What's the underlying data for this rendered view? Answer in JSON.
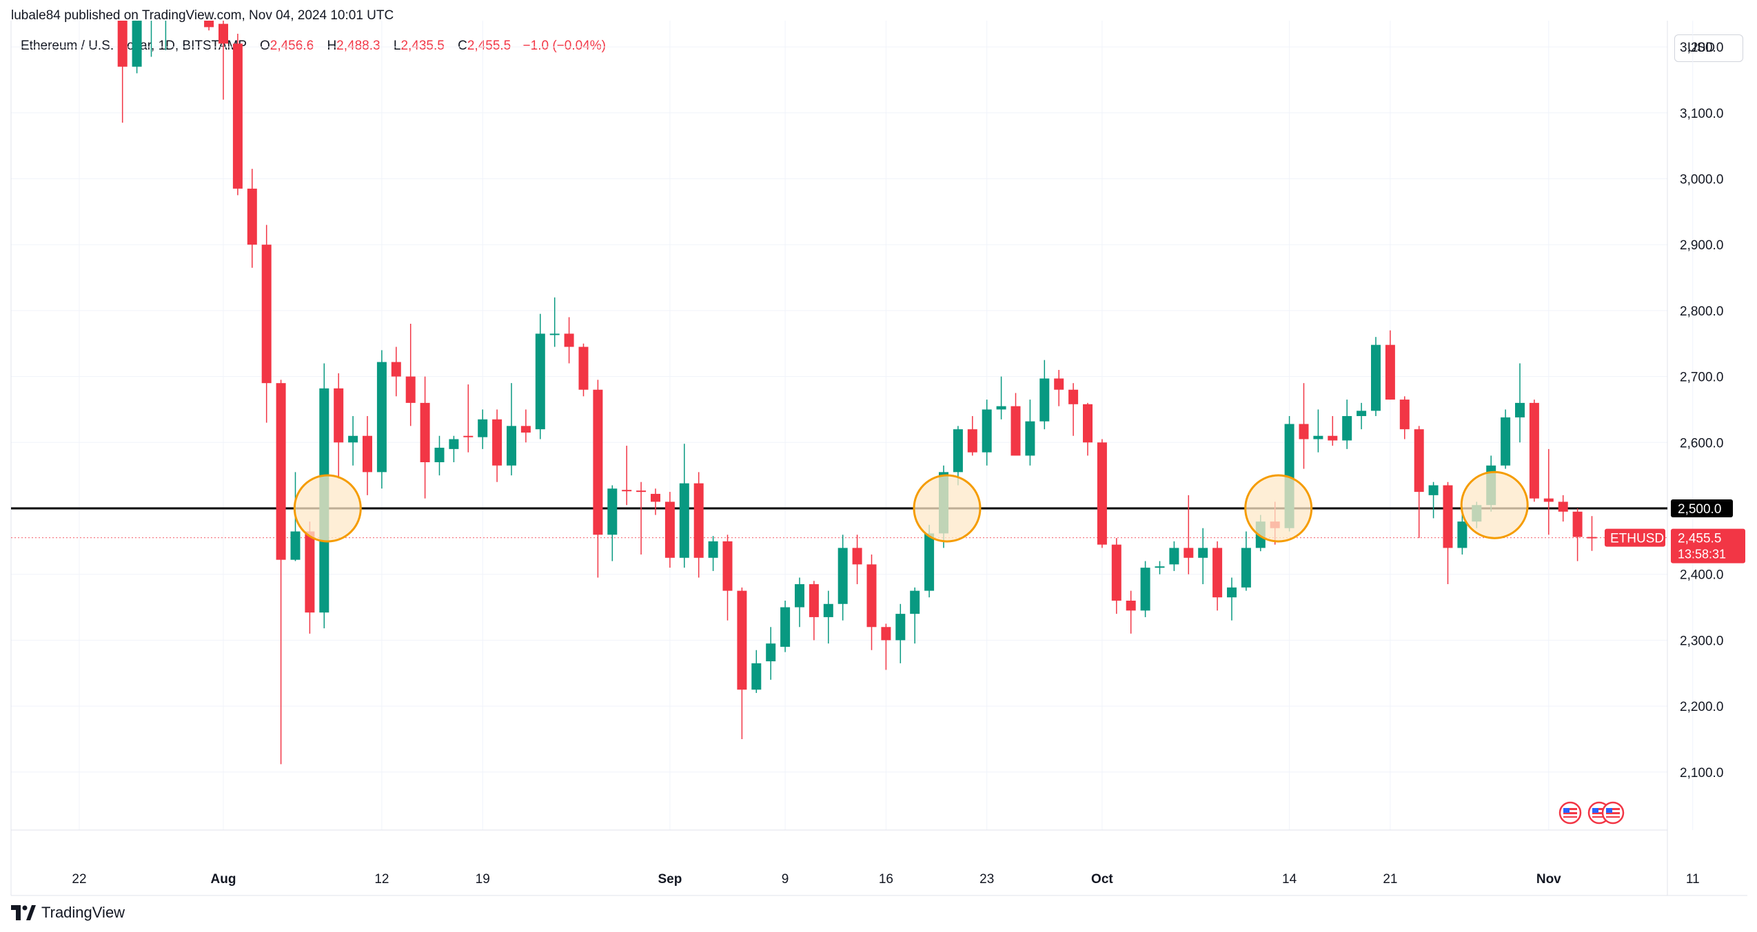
{
  "publisher": "lubale84 published on TradingView.com, Nov 04, 2024 10:01 UTC",
  "legend": {
    "symbol": "Ethereum / U.S. Dollar, 1D, BITSTAMP",
    "open_label": "O",
    "open": "2,456.6",
    "high_label": "H",
    "high": "2,488.3",
    "low_label": "L",
    "low": "2,435.5",
    "close_label": "C",
    "close": "2,455.5",
    "change": "−1.0 (−0.04%)"
  },
  "currency_button": "USD",
  "brand": "TradingView",
  "colors": {
    "up": "#089981",
    "down": "#f23645",
    "highlight_fill": "#fde8c8",
    "highlight_stroke": "#f59c00",
    "level_line": "#000000"
  },
  "chart_data": {
    "type": "candlestick",
    "symbol": "ETHUSD",
    "interval": "1D",
    "ylim": [
      2080,
      3280
    ],
    "y_ticks": [
      "3,200.0",
      "3,100.0",
      "3,000.0",
      "2,900.0",
      "2,800.0",
      "2,700.0",
      "2,600.0",
      "2,500.0",
      "2,400.0",
      "2,300.0",
      "2,200.0",
      "2,100.0"
    ],
    "y_tick_values": [
      3200,
      3100,
      3000,
      2900,
      2800,
      2700,
      2600,
      2500,
      2400,
      2300,
      2200,
      2100
    ],
    "x_ticks": [
      {
        "label": "22",
        "day": -10,
        "bold": false
      },
      {
        "label": "Aug",
        "day": 0,
        "bold": true
      },
      {
        "label": "12",
        "day": 11,
        "bold": false
      },
      {
        "label": "19",
        "day": 18,
        "bold": false
      },
      {
        "label": "Sep",
        "day": 31,
        "bold": true
      },
      {
        "label": "9",
        "day": 39,
        "bold": false
      },
      {
        "label": "16",
        "day": 46,
        "bold": false
      },
      {
        "label": "23",
        "day": 53,
        "bold": false
      },
      {
        "label": "Oct",
        "day": 61,
        "bold": true
      },
      {
        "label": "14",
        "day": 74,
        "bold": false
      },
      {
        "label": "21",
        "day": 81,
        "bold": false
      },
      {
        "label": "Nov",
        "day": 92,
        "bold": true
      },
      {
        "label": "11",
        "day": 102,
        "bold": false
      }
    ],
    "candles": [
      {
        "d": -7,
        "o": 3265,
        "h": 3300,
        "l": 3085,
        "c": 3170
      },
      {
        "d": -6,
        "o": 3170,
        "h": 3290,
        "l": 3160,
        "c": 3265
      },
      {
        "d": -5,
        "o": 3255,
        "h": 3300,
        "l": 3185,
        "c": 3255
      },
      {
        "d": -4,
        "o": 3240,
        "h": 3275,
        "l": 3195,
        "c": 3275
      },
      {
        "d": -3,
        "o": 3280,
        "h": 3300,
        "l": 3240,
        "c": 3300
      },
      {
        "d": -2,
        "o": 3290,
        "h": 3300,
        "l": 3250,
        "c": 3280
      },
      {
        "d": -1,
        "o": 3265,
        "h": 3290,
        "l": 3225,
        "c": 3230
      },
      {
        "d": 0,
        "o": 3235,
        "h": 3250,
        "l": 3120,
        "c": 3205
      },
      {
        "d": 1,
        "o": 3205,
        "h": 3220,
        "l": 2975,
        "c": 2985
      },
      {
        "d": 2,
        "o": 2985,
        "h": 3015,
        "l": 2865,
        "c": 2900
      },
      {
        "d": 3,
        "o": 2900,
        "h": 2930,
        "l": 2630,
        "c": 2690
      },
      {
        "d": 4,
        "o": 2690,
        "h": 2695,
        "l": 2112,
        "c": 2422
      },
      {
        "d": 5,
        "o": 2422,
        "h": 2555,
        "l": 2420,
        "c": 2465
      },
      {
        "d": 6,
        "o": 2465,
        "h": 2480,
        "l": 2310,
        "c": 2342
      },
      {
        "d": 7,
        "o": 2342,
        "h": 2720,
        "l": 2318,
        "c": 2682
      },
      {
        "d": 8,
        "o": 2682,
        "h": 2705,
        "l": 2545,
        "c": 2600
      },
      {
        "d": 9,
        "o": 2600,
        "h": 2640,
        "l": 2565,
        "c": 2610
      },
      {
        "d": 10,
        "o": 2610,
        "h": 2640,
        "l": 2520,
        "c": 2555
      },
      {
        "d": 11,
        "o": 2555,
        "h": 2740,
        "l": 2530,
        "c": 2722
      },
      {
        "d": 12,
        "o": 2722,
        "h": 2745,
        "l": 2670,
        "c": 2700
      },
      {
        "d": 13,
        "o": 2700,
        "h": 2780,
        "l": 2625,
        "c": 2660
      },
      {
        "d": 14,
        "o": 2660,
        "h": 2700,
        "l": 2515,
        "c": 2570
      },
      {
        "d": 15,
        "o": 2570,
        "h": 2610,
        "l": 2550,
        "c": 2592
      },
      {
        "d": 16,
        "o": 2590,
        "h": 2610,
        "l": 2570,
        "c": 2605
      },
      {
        "d": 17,
        "o": 2610,
        "h": 2688,
        "l": 2585,
        "c": 2608
      },
      {
        "d": 18,
        "o": 2608,
        "h": 2650,
        "l": 2590,
        "c": 2635
      },
      {
        "d": 19,
        "o": 2635,
        "h": 2650,
        "l": 2540,
        "c": 2565
      },
      {
        "d": 20,
        "o": 2565,
        "h": 2690,
        "l": 2550,
        "c": 2625
      },
      {
        "d": 21,
        "o": 2625,
        "h": 2650,
        "l": 2600,
        "c": 2615
      },
      {
        "d": 22,
        "o": 2620,
        "h": 2795,
        "l": 2605,
        "c": 2765
      },
      {
        "d": 23,
        "o": 2765,
        "h": 2820,
        "l": 2745,
        "c": 2765
      },
      {
        "d": 24,
        "o": 2765,
        "h": 2790,
        "l": 2720,
        "c": 2745
      },
      {
        "d": 25,
        "o": 2745,
        "h": 2750,
        "l": 2670,
        "c": 2680
      },
      {
        "d": 26,
        "o": 2680,
        "h": 2695,
        "l": 2395,
        "c": 2460
      },
      {
        "d": 27,
        "o": 2460,
        "h": 2535,
        "l": 2420,
        "c": 2530
      },
      {
        "d": 28,
        "o": 2528,
        "h": 2595,
        "l": 2505,
        "c": 2527
      },
      {
        "d": 29,
        "o": 2527,
        "h": 2540,
        "l": 2430,
        "c": 2525
      },
      {
        "d": 30,
        "o": 2522,
        "h": 2530,
        "l": 2490,
        "c": 2510
      },
      {
        "d": 31,
        "o": 2510,
        "h": 2525,
        "l": 2410,
        "c": 2425
      },
      {
        "d": 32,
        "o": 2425,
        "h": 2598,
        "l": 2410,
        "c": 2538
      },
      {
        "d": 33,
        "o": 2538,
        "h": 2555,
        "l": 2395,
        "c": 2425
      },
      {
        "d": 34,
        "o": 2425,
        "h": 2458,
        "l": 2405,
        "c": 2450
      },
      {
        "d": 35,
        "o": 2450,
        "h": 2460,
        "l": 2330,
        "c": 2375
      },
      {
        "d": 36,
        "o": 2375,
        "h": 2380,
        "l": 2150,
        "c": 2225
      },
      {
        "d": 37,
        "o": 2225,
        "h": 2285,
        "l": 2220,
        "c": 2265
      },
      {
        "d": 38,
        "o": 2268,
        "h": 2320,
        "l": 2240,
        "c": 2295
      },
      {
        "d": 39,
        "o": 2290,
        "h": 2360,
        "l": 2282,
        "c": 2350
      },
      {
        "d": 40,
        "o": 2350,
        "h": 2395,
        "l": 2320,
        "c": 2385
      },
      {
        "d": 41,
        "o": 2385,
        "h": 2390,
        "l": 2300,
        "c": 2335
      },
      {
        "d": 42,
        "o": 2335,
        "h": 2375,
        "l": 2295,
        "c": 2355
      },
      {
        "d": 43,
        "o": 2355,
        "h": 2460,
        "l": 2330,
        "c": 2440
      },
      {
        "d": 44,
        "o": 2440,
        "h": 2460,
        "l": 2385,
        "c": 2415
      },
      {
        "d": 45,
        "o": 2415,
        "h": 2430,
        "l": 2285,
        "c": 2320
      },
      {
        "d": 46,
        "o": 2320,
        "h": 2325,
        "l": 2255,
        "c": 2300
      },
      {
        "d": 47,
        "o": 2300,
        "h": 2355,
        "l": 2265,
        "c": 2340
      },
      {
        "d": 48,
        "o": 2340,
        "h": 2380,
        "l": 2295,
        "c": 2375
      },
      {
        "d": 49,
        "o": 2375,
        "h": 2475,
        "l": 2365,
        "c": 2462
      },
      {
        "d": 50,
        "o": 2462,
        "h": 2565,
        "l": 2440,
        "c": 2555
      },
      {
        "d": 51,
        "o": 2555,
        "h": 2625,
        "l": 2535,
        "c": 2620
      },
      {
        "d": 52,
        "o": 2620,
        "h": 2640,
        "l": 2580,
        "c": 2585
      },
      {
        "d": 53,
        "o": 2585,
        "h": 2665,
        "l": 2565,
        "c": 2650
      },
      {
        "d": 54,
        "o": 2650,
        "h": 2700,
        "l": 2635,
        "c": 2655
      },
      {
        "d": 55,
        "o": 2655,
        "h": 2675,
        "l": 2585,
        "c": 2580
      },
      {
        "d": 56,
        "o": 2580,
        "h": 2665,
        "l": 2565,
        "c": 2632
      },
      {
        "d": 57,
        "o": 2632,
        "h": 2725,
        "l": 2620,
        "c": 2697
      },
      {
        "d": 58,
        "o": 2697,
        "h": 2710,
        "l": 2655,
        "c": 2680
      },
      {
        "d": 59,
        "o": 2680,
        "h": 2690,
        "l": 2610,
        "c": 2658
      },
      {
        "d": 60,
        "o": 2658,
        "h": 2660,
        "l": 2580,
        "c": 2600
      },
      {
        "d": 61,
        "o": 2600,
        "h": 2605,
        "l": 2440,
        "c": 2445
      },
      {
        "d": 62,
        "o": 2445,
        "h": 2455,
        "l": 2340,
        "c": 2360
      },
      {
        "d": 63,
        "o": 2360,
        "h": 2375,
        "l": 2310,
        "c": 2345
      },
      {
        "d": 64,
        "o": 2345,
        "h": 2420,
        "l": 2335,
        "c": 2410
      },
      {
        "d": 65,
        "o": 2410,
        "h": 2420,
        "l": 2400,
        "c": 2412
      },
      {
        "d": 66,
        "o": 2415,
        "h": 2450,
        "l": 2405,
        "c": 2440
      },
      {
        "d": 67,
        "o": 2440,
        "h": 2520,
        "l": 2400,
        "c": 2425
      },
      {
        "d": 68,
        "o": 2425,
        "h": 2470,
        "l": 2385,
        "c": 2440
      },
      {
        "d": 69,
        "o": 2440,
        "h": 2450,
        "l": 2345,
        "c": 2365
      },
      {
        "d": 70,
        "o": 2365,
        "h": 2395,
        "l": 2330,
        "c": 2380
      },
      {
        "d": 71,
        "o": 2380,
        "h": 2465,
        "l": 2375,
        "c": 2440
      },
      {
        "d": 72,
        "o": 2440,
        "h": 2490,
        "l": 2435,
        "c": 2480
      },
      {
        "d": 73,
        "o": 2480,
        "h": 2510,
        "l": 2445,
        "c": 2470
      },
      {
        "d": 74,
        "o": 2470,
        "h": 2640,
        "l": 2465,
        "c": 2628
      },
      {
        "d": 75,
        "o": 2628,
        "h": 2690,
        "l": 2560,
        "c": 2605
      },
      {
        "d": 76,
        "o": 2605,
        "h": 2650,
        "l": 2585,
        "c": 2610
      },
      {
        "d": 77,
        "o": 2610,
        "h": 2640,
        "l": 2595,
        "c": 2603
      },
      {
        "d": 78,
        "o": 2603,
        "h": 2665,
        "l": 2590,
        "c": 2640
      },
      {
        "d": 79,
        "o": 2640,
        "h": 2660,
        "l": 2620,
        "c": 2648
      },
      {
        "d": 80,
        "o": 2648,
        "h": 2760,
        "l": 2640,
        "c": 2748
      },
      {
        "d": 81,
        "o": 2748,
        "h": 2770,
        "l": 2665,
        "c": 2665
      },
      {
        "d": 82,
        "o": 2665,
        "h": 2670,
        "l": 2605,
        "c": 2620
      },
      {
        "d": 83,
        "o": 2620,
        "h": 2625,
        "l": 2455,
        "c": 2525
      },
      {
        "d": 84,
        "o": 2520,
        "h": 2540,
        "l": 2485,
        "c": 2535
      },
      {
        "d": 85,
        "o": 2535,
        "h": 2540,
        "l": 2385,
        "c": 2440
      },
      {
        "d": 86,
        "o": 2440,
        "h": 2495,
        "l": 2430,
        "c": 2480
      },
      {
        "d": 87,
        "o": 2480,
        "h": 2510,
        "l": 2470,
        "c": 2505
      },
      {
        "d": 88,
        "o": 2505,
        "h": 2580,
        "l": 2495,
        "c": 2565
      },
      {
        "d": 89,
        "o": 2565,
        "h": 2650,
        "l": 2560,
        "c": 2638
      },
      {
        "d": 90,
        "o": 2638,
        "h": 2720,
        "l": 2600,
        "c": 2660
      },
      {
        "d": 91,
        "o": 2660,
        "h": 2665,
        "l": 2510,
        "c": 2515
      },
      {
        "d": 92,
        "o": 2515,
        "h": 2590,
        "l": 2460,
        "c": 2510
      },
      {
        "d": 93,
        "o": 2510,
        "h": 2520,
        "l": 2480,
        "c": 2495
      },
      {
        "d": 94,
        "o": 2495,
        "h": 2500,
        "l": 2420,
        "c": 2456.6
      },
      {
        "d": 95,
        "o": 2456.6,
        "h": 2488.3,
        "l": 2435.5,
        "c": 2455.5
      }
    ],
    "level_line": {
      "value": 2500,
      "label": "2,500.0"
    },
    "highlights": [
      {
        "d": 7,
        "price": 2500
      },
      {
        "d": 50,
        "price": 2500
      },
      {
        "d": 73,
        "price": 2500
      },
      {
        "d": 88,
        "price": 2505
      }
    ],
    "last_price": {
      "value": 2455.5,
      "ticker_label": "ETHUSD",
      "price_label": "2,455.5",
      "countdown": "13:58:31"
    }
  }
}
